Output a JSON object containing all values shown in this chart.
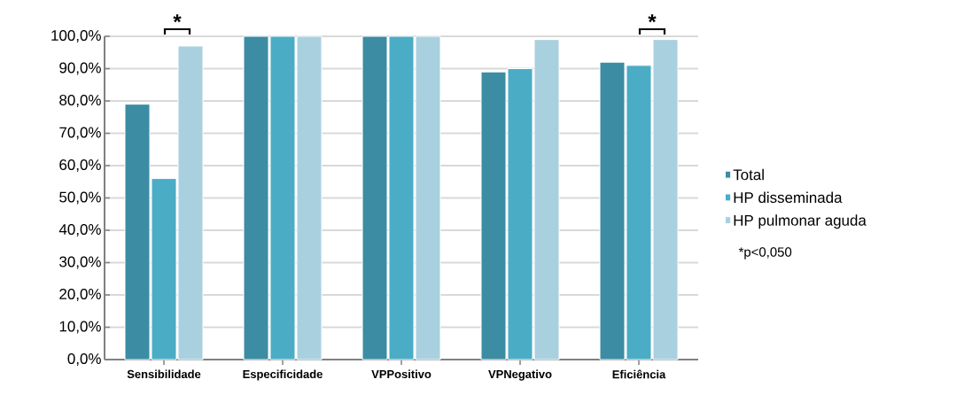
{
  "chart_data": {
    "type": "bar",
    "categories": [
      "Sensibilidade",
      "Especificidade",
      "VPPositivo",
      "VPNegativo",
      "Eficiência"
    ],
    "series": [
      {
        "name": "Total",
        "color": "#3c8ca3",
        "values": [
          79,
          100,
          100,
          89,
          92
        ]
      },
      {
        "name": "HP disseminada",
        "color": "#4bacc6",
        "values": [
          56,
          100,
          100,
          90,
          91
        ]
      },
      {
        "name": "HP pulmonar aguda",
        "color": "#a9d0de",
        "values": [
          97,
          100,
          100,
          99,
          99
        ]
      }
    ],
    "ylim": [
      0,
      100
    ],
    "yticks": [
      {
        "value": 0,
        "label": "0,0%"
      },
      {
        "value": 10,
        "label": "10,0%"
      },
      {
        "value": 20,
        "label": "20,0%"
      },
      {
        "value": 30,
        "label": "30,0%"
      },
      {
        "value": 40,
        "label": "40,0%"
      },
      {
        "value": 50,
        "label": "50,0%"
      },
      {
        "value": 60,
        "label": "60,0%"
      },
      {
        "value": 70,
        "label": "70,0%"
      },
      {
        "value": 80,
        "label": "80,0%"
      },
      {
        "value": 90,
        "label": "90,0%"
      },
      {
        "value": 100,
        "label": "100,0%"
      }
    ],
    "grid": "y",
    "legend": "right",
    "annotations": [
      "*",
      "*",
      "*p<0,050"
    ]
  }
}
